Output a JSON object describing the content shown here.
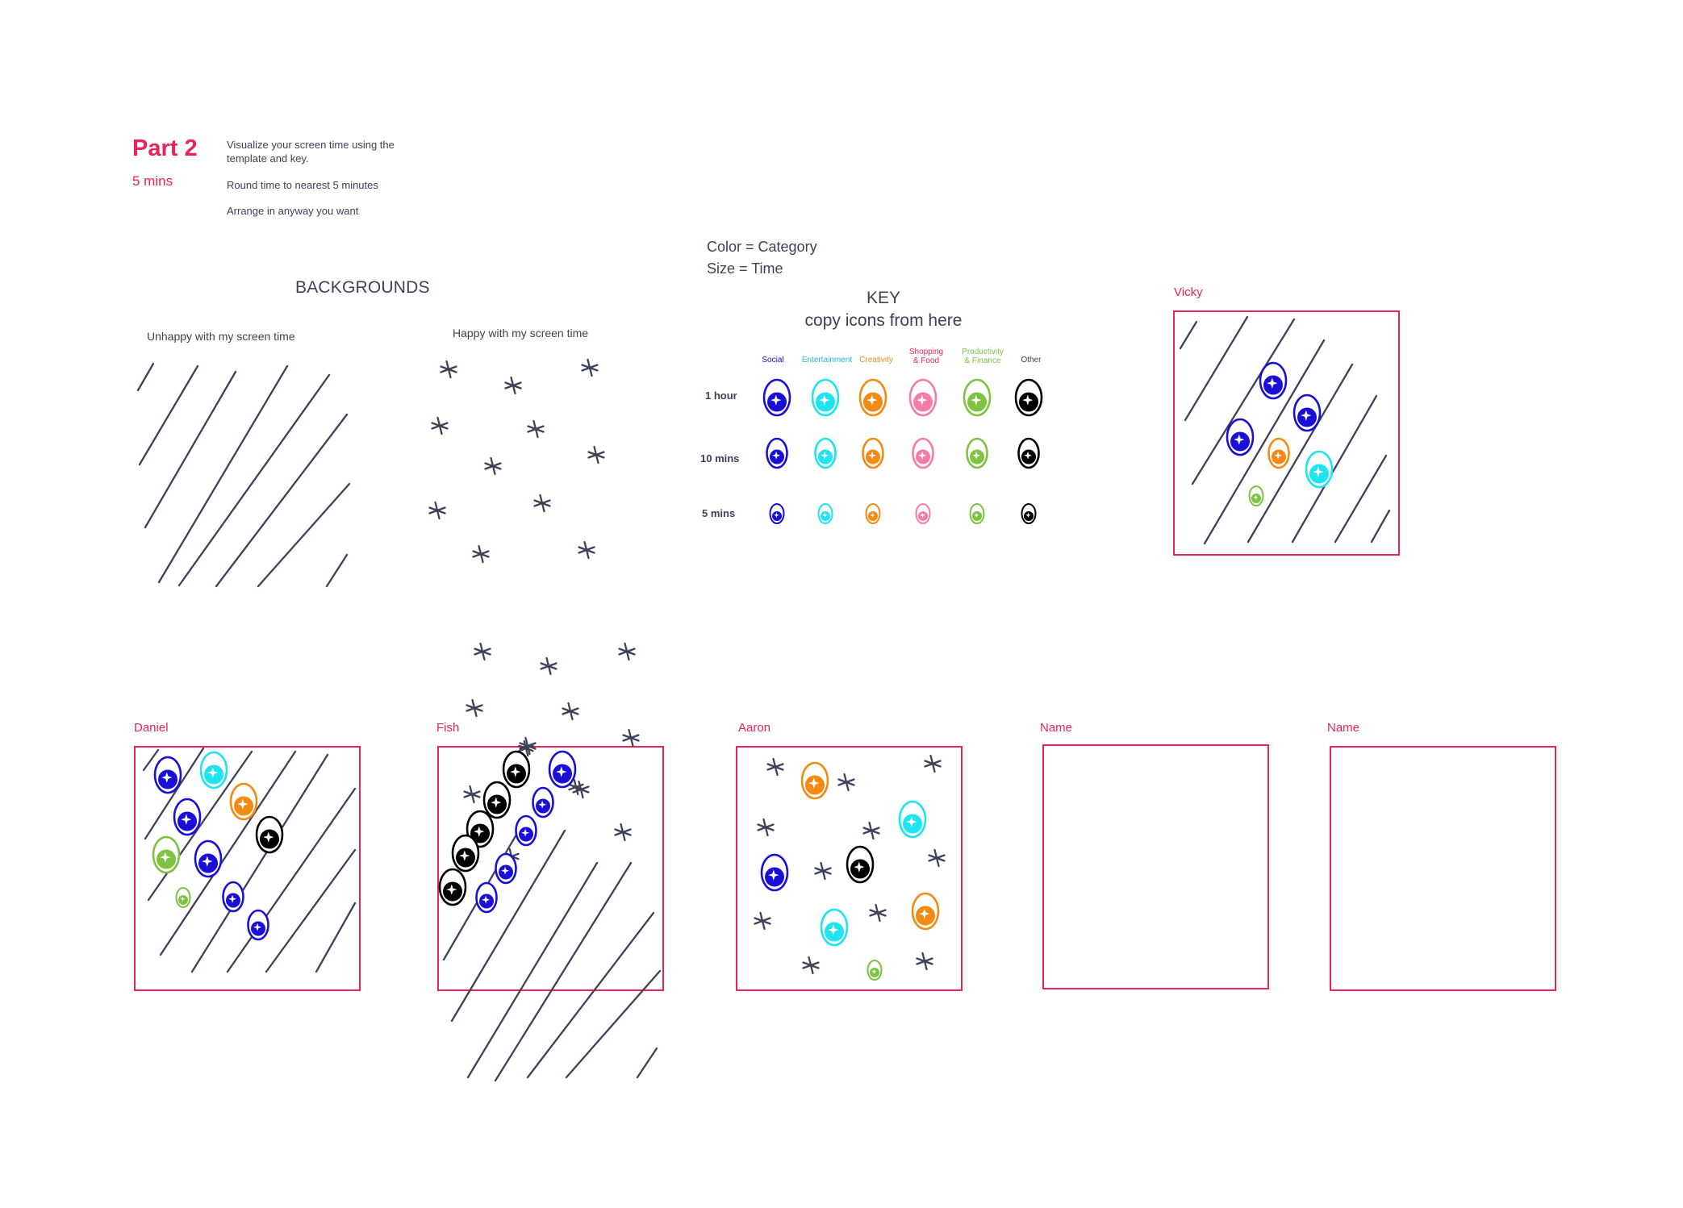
{
  "header": {
    "part_title": "Part 2",
    "part_duration": "5 mins",
    "instructions": [
      "Visualize your screen time using the template and key.",
      "Round time to nearest 5 minutes",
      "Arrange in anyway you want"
    ]
  },
  "backgrounds": {
    "title": "BACKGROUNDS",
    "unhappy_label": "Unhappy with my screen time",
    "happy_label": "Happy with my screen time"
  },
  "legend": {
    "color_line": "Color = Category",
    "size_line": "Size = Time"
  },
  "key": {
    "title_line1": "KEY",
    "title_line2": "copy icons from here",
    "categories": [
      {
        "label_line1": "Social",
        "label_line2": "",
        "color": "#1a0fd6"
      },
      {
        "label_line1": "Entertainment",
        "label_line2": "",
        "color": "#1ee3f0"
      },
      {
        "label_line1": "Creativity",
        "label_line2": "",
        "color": "#f28a14"
      },
      {
        "label_line1": "Shopping",
        "label_line2": "& Food",
        "color": "#f57ca8"
      },
      {
        "label_line1": "Productivity",
        "label_line2": "& Finance",
        "color": "#7ec242"
      },
      {
        "label_line1": "Other",
        "label_line2": "",
        "color": "#000000"
      }
    ],
    "rows": [
      {
        "label": "1 hour"
      },
      {
        "label": "10 mins"
      },
      {
        "label": "5 mins"
      }
    ]
  },
  "boards": [
    {
      "name": "Vicky"
    },
    {
      "name": "Daniel"
    },
    {
      "name": "Fish"
    },
    {
      "name": "Aaron"
    },
    {
      "name": "Name"
    },
    {
      "name": "Name"
    }
  ]
}
